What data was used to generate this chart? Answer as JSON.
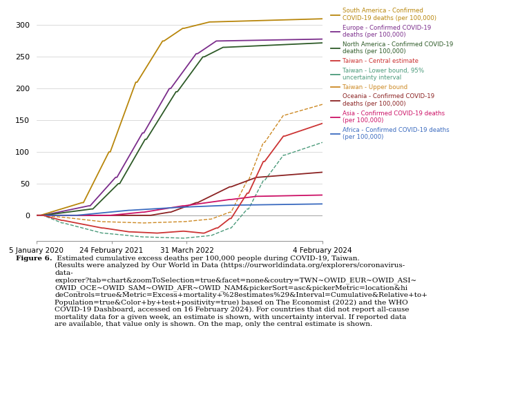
{
  "x_tick_labels": [
    "5 January 2020",
    "24 February 2021",
    "31 March 2022",
    "4 February 2024"
  ],
  "x_tick_positions": [
    0,
    56,
    112,
    213
  ],
  "ylim": [
    -40,
    320
  ],
  "yticks": [
    0,
    50,
    100,
    150,
    200,
    250,
    300
  ],
  "colors": {
    "south_america": "#b8860b",
    "europe": "#7b2d8b",
    "north_america": "#2d5a27",
    "taiwan_central": "#cc3333",
    "taiwan_lower": "#4a9a7a",
    "taiwan_upper": "#cc8822",
    "oceania": "#8b2222",
    "asia": "#cc1166",
    "africa": "#3a6abf"
  },
  "background_color": "#ffffff",
  "grid_color": "#cccccc",
  "caption_bold": "Figure 6.",
  "caption_normal": " Estimated cumulative excess deaths per 100,000 people during COVID-19, Taiwan. (Results were analyzed by Our World in Data (https://ourworldindata.org/explorers/coronavirus-data-explorer?tab=chart&zoomToSelection=true&facet=none&coutry=TWN~OWID_EUR~OWID_ASI~OWID_OCE~OWID_SAM~OWID_AFR~OWID_NAM&pickerSort=asc&pickerMetric=location&hideControls=true&Metric=Excess+mortality+%28estimates%29&Interval=Cumulative&Relative+to+Population=true&Color+by+test+positivity=true) based on The Economist (2022) and the WHO COVID-19 Dashboard, accessed on 16 February 2024). For countries that did not report all-cause mortality data for a given week, an estimate is shown, with uncertainty interval. If reported data are available, that value only is shown. On the map, only the central estimate is shown.",
  "legend_items": [
    {
      "color": "#b8860b",
      "label": "South America - Confirmed\nCOVID-19 deaths (per 100,000)"
    },
    {
      "color": "#7b2d8b",
      "label": "Europe - Confirmed COVID-19\ndeaths (per 100,000)"
    },
    {
      "color": "#2d5a27",
      "label": "North America - Confirmed COVID-19\ndeaths (per 100,000)"
    },
    {
      "color": "#cc3333",
      "label": "Taiwan - Central estimate"
    },
    {
      "color": "#4a9a7a",
      "label": "Taiwan - Lower bound, 95%\nuncertainty interval"
    },
    {
      "color": "#cc8822",
      "label": "Taiwan - Upper bound"
    },
    {
      "color": "#8b2222",
      "label": "Oceania - Confirmed COVID-19\ndeaths (per 100,000)"
    },
    {
      "color": "#cc1166",
      "label": "Asia - Confirmed COVID-19 deaths\n(per 100,000)"
    },
    {
      "color": "#3a6abf",
      "label": "Africa - Confirmed COVID-19 deaths\n(per 100,000)"
    }
  ]
}
